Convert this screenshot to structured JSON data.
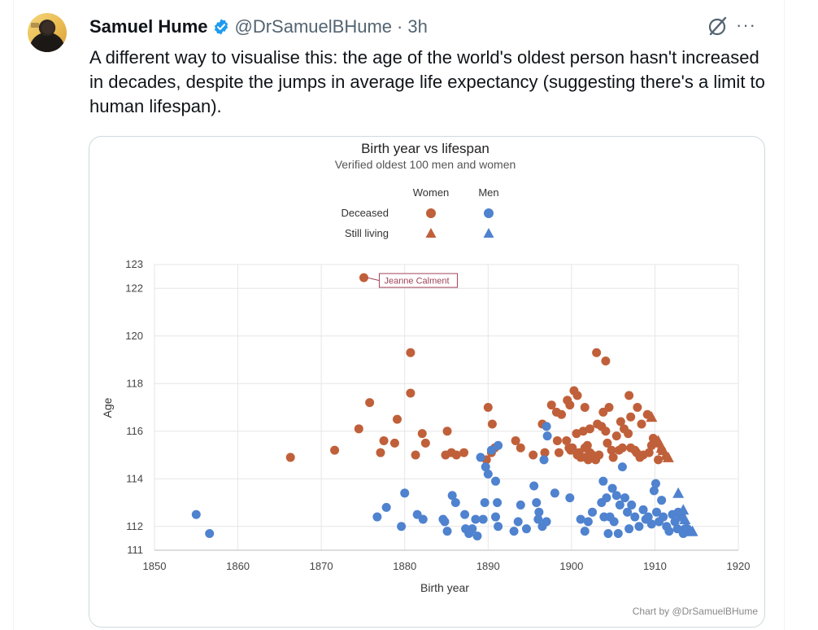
{
  "author": {
    "name": "Samuel Hume",
    "handle": "@DrSamuelBHume",
    "separator": "·",
    "time": "3h",
    "verified_color": "#1d9bf0"
  },
  "icons": {
    "avatar": "avatar-image",
    "verified": "verified-badge-icon",
    "grok": "grok-icon",
    "more": "more-options-icon"
  },
  "tweet": {
    "text": "A different way to visualise this: the age of the world's oldest person hasn't increased in decades, despite the jumps in average life expectancy (suggesting there's a limit to human lifespan)."
  },
  "chart_data": {
    "type": "scatter",
    "title": "Birth year vs lifespan",
    "subtitle": "Verified oldest 100 men and women",
    "xlabel": "Birth year",
    "ylabel": "Age",
    "xlim": [
      1850,
      1920
    ],
    "ylim": [
      111,
      123
    ],
    "x_ticks": [
      1850,
      1860,
      1870,
      1880,
      1890,
      1900,
      1910,
      1920
    ],
    "y_ticks": [
      111,
      112,
      114,
      116,
      118,
      120,
      122,
      123
    ],
    "grid": true,
    "legend_position": "top-center",
    "legend": {
      "columns": [
        "Women",
        "Men"
      ],
      "rows": [
        "Deceased",
        "Still living"
      ]
    },
    "colors": {
      "women": "#c0603a",
      "men": "#4f82cf"
    },
    "annotation": {
      "text": "Jeanne Calment",
      "x": 1875.1,
      "y": 122.45
    },
    "credit": "Chart by @DrSamuelBHume",
    "series": [
      {
        "name": "Women, deceased",
        "points": [
          [
            1875.1,
            122.45
          ],
          [
            1880.7,
            119.3
          ],
          [
            1880.7,
            117.6
          ],
          [
            1875.8,
            117.2
          ],
          [
            1874.5,
            116.1
          ],
          [
            1879.1,
            116.5
          ],
          [
            1866.3,
            114.9
          ],
          [
            1871.6,
            115.2
          ],
          [
            1877.1,
            115.1
          ],
          [
            1877.5,
            115.6
          ],
          [
            1878.8,
            115.5
          ],
          [
            1881.3,
            115.0
          ],
          [
            1882.1,
            115.9
          ],
          [
            1882.5,
            115.5
          ],
          [
            1885.1,
            116.0
          ],
          [
            1884.9,
            115.0
          ],
          [
            1885.6,
            115.1
          ],
          [
            1886.2,
            115.0
          ],
          [
            1887.1,
            115.1
          ],
          [
            1889.8,
            114.8
          ],
          [
            1890.0,
            117.0
          ],
          [
            1890.5,
            116.3
          ],
          [
            1890.4,
            115.1
          ],
          [
            1890.8,
            115.3
          ],
          [
            1893.3,
            115.6
          ],
          [
            1893.9,
            115.3
          ],
          [
            1895.4,
            115.0
          ],
          [
            1896.5,
            116.3
          ],
          [
            1897.6,
            117.1
          ],
          [
            1898.2,
            116.8
          ],
          [
            1898.8,
            116.7
          ],
          [
            1899.5,
            117.3
          ],
          [
            1899.8,
            117.1
          ],
          [
            1900.3,
            117.7
          ],
          [
            1900.7,
            117.5
          ],
          [
            1901.6,
            117.0
          ],
          [
            1903.0,
            119.3
          ],
          [
            1904.1,
            118.95
          ],
          [
            1904.5,
            117.0
          ],
          [
            1906.9,
            117.5
          ],
          [
            1907.9,
            117.0
          ],
          [
            1898.3,
            115.6
          ],
          [
            1896.8,
            115.1
          ],
          [
            1898.5,
            115.1
          ],
          [
            1899.4,
            115.6
          ],
          [
            1899.7,
            115.3
          ],
          [
            1899.9,
            115.2
          ],
          [
            1900.6,
            115.9
          ],
          [
            1900.1,
            115.3
          ],
          [
            1900.9,
            115.1
          ],
          [
            1901.1,
            114.9
          ],
          [
            1901.6,
            115.3
          ],
          [
            1902.0,
            114.8
          ],
          [
            1902.2,
            115.1
          ],
          [
            1902.9,
            114.8
          ],
          [
            1901.4,
            116.0
          ],
          [
            1902.2,
            116.1
          ],
          [
            1903.1,
            116.3
          ],
          [
            1903.6,
            116.2
          ],
          [
            1904.1,
            116.0
          ],
          [
            1904.3,
            115.5
          ],
          [
            1904.8,
            115.2
          ],
          [
            1905.4,
            115.8
          ],
          [
            1905.7,
            115.2
          ],
          [
            1905.9,
            116.4
          ],
          [
            1906.3,
            116.1
          ],
          [
            1906.8,
            115.9
          ],
          [
            1907.1,
            115.3
          ],
          [
            1907.6,
            115.2
          ],
          [
            1907.8,
            115.1
          ],
          [
            1908.2,
            114.9
          ],
          [
            1908.6,
            115.0
          ],
          [
            1909.3,
            115.1
          ],
          [
            1909.8,
            115.7
          ],
          [
            1910.3,
            115.5
          ],
          [
            1910.8,
            115.2
          ],
          [
            1910.4,
            114.8
          ],
          [
            1907.1,
            116.6
          ],
          [
            1909.1,
            116.7
          ],
          [
            1903.3,
            115.0
          ],
          [
            1901.9,
            115.4
          ],
          [
            1900.7,
            115.0
          ],
          [
            1902.5,
            115.0
          ],
          [
            1906.1,
            115.3
          ],
          [
            1909.6,
            115.4
          ],
          [
            1903.8,
            116.8
          ],
          [
            1908.4,
            116.3
          ],
          [
            1905.0,
            114.9
          ],
          [
            1901.7,
            114.9
          ]
        ]
      },
      {
        "name": "Women, still living",
        "points": [
          [
            1909.6,
            116.6
          ],
          [
            1910.4,
            115.6
          ],
          [
            1910.8,
            115.3
          ],
          [
            1911.0,
            115.2
          ],
          [
            1911.3,
            115.0
          ],
          [
            1911.6,
            114.9
          ]
        ]
      },
      {
        "name": "Men, deceased",
        "points": [
          [
            1855.0,
            112.5
          ],
          [
            1856.6,
            111.7
          ],
          [
            1876.7,
            112.4
          ],
          [
            1877.8,
            112.8
          ],
          [
            1880.0,
            113.4
          ],
          [
            1879.6,
            112.0
          ],
          [
            1881.5,
            112.5
          ],
          [
            1882.2,
            112.3
          ],
          [
            1884.8,
            112.2
          ],
          [
            1885.1,
            111.8
          ],
          [
            1885.7,
            113.3
          ],
          [
            1886.1,
            113.0
          ],
          [
            1887.2,
            112.5
          ],
          [
            1887.3,
            111.9
          ],
          [
            1887.7,
            111.7
          ],
          [
            1888.1,
            111.9
          ],
          [
            1888.5,
            112.3
          ],
          [
            1888.7,
            111.6
          ],
          [
            1889.1,
            114.9
          ],
          [
            1889.7,
            114.5
          ],
          [
            1890.0,
            114.2
          ],
          [
            1890.9,
            113.9
          ],
          [
            1889.6,
            113.0
          ],
          [
            1889.4,
            112.3
          ],
          [
            1890.4,
            115.2
          ],
          [
            1891.2,
            115.4
          ],
          [
            1890.9,
            112.4
          ],
          [
            1891.2,
            112.0
          ],
          [
            1893.1,
            111.8
          ],
          [
            1893.6,
            112.2
          ],
          [
            1893.9,
            112.9
          ],
          [
            1894.6,
            111.9
          ],
          [
            1895.5,
            113.7
          ],
          [
            1895.8,
            113.0
          ],
          [
            1896.1,
            112.6
          ],
          [
            1896.5,
            112.0
          ],
          [
            1897.1,
            115.8
          ],
          [
            1896.7,
            114.8
          ],
          [
            1898.0,
            113.4
          ],
          [
            1897.0,
            112.2
          ],
          [
            1899.8,
            113.2
          ],
          [
            1901.1,
            112.3
          ],
          [
            1901.6,
            111.8
          ],
          [
            1902.0,
            112.2
          ],
          [
            1902.5,
            112.6
          ],
          [
            1903.6,
            113.0
          ],
          [
            1903.9,
            112.4
          ],
          [
            1904.2,
            113.2
          ],
          [
            1904.6,
            112.4
          ],
          [
            1904.9,
            113.6
          ],
          [
            1905.1,
            112.2
          ],
          [
            1905.4,
            113.3
          ],
          [
            1905.6,
            111.7
          ],
          [
            1906.1,
            114.5
          ],
          [
            1906.4,
            113.2
          ],
          [
            1906.7,
            112.6
          ],
          [
            1906.9,
            111.9
          ],
          [
            1907.2,
            112.9
          ],
          [
            1907.6,
            112.4
          ],
          [
            1908.1,
            112.0
          ],
          [
            1908.6,
            112.7
          ],
          [
            1909.2,
            112.4
          ],
          [
            1909.6,
            112.1
          ],
          [
            1909.9,
            113.5
          ],
          [
            1910.1,
            113.8
          ],
          [
            1910.2,
            112.6
          ],
          [
            1910.5,
            112.2
          ],
          [
            1910.8,
            113.1
          ],
          [
            1911.0,
            112.4
          ],
          [
            1911.4,
            112.0
          ],
          [
            1911.7,
            111.8
          ],
          [
            1912.1,
            112.5
          ],
          [
            1912.4,
            112.2
          ],
          [
            1912.7,
            111.9
          ],
          [
            1913.1,
            112.4
          ],
          [
            1913.6,
            111.9
          ],
          [
            1914.0,
            111.8
          ],
          [
            1913.4,
            111.7
          ],
          [
            1903.8,
            113.9
          ],
          [
            1891.1,
            113.0
          ],
          [
            1884.6,
            112.3
          ],
          [
            1896.0,
            112.3
          ],
          [
            1908.9,
            112.3
          ],
          [
            1905.8,
            112.9
          ],
          [
            1912.8,
            112.6
          ],
          [
            1904.4,
            111.7
          ],
          [
            1913.9,
            111.9
          ],
          [
            1897.0,
            116.2
          ]
        ]
      },
      {
        "name": "Men, still living",
        "points": [
          [
            1912.8,
            113.4
          ],
          [
            1913.4,
            112.7
          ],
          [
            1913.6,
            112.3
          ],
          [
            1913.8,
            112.0
          ],
          [
            1914.2,
            111.8
          ],
          [
            1914.5,
            111.8
          ]
        ]
      }
    ]
  }
}
